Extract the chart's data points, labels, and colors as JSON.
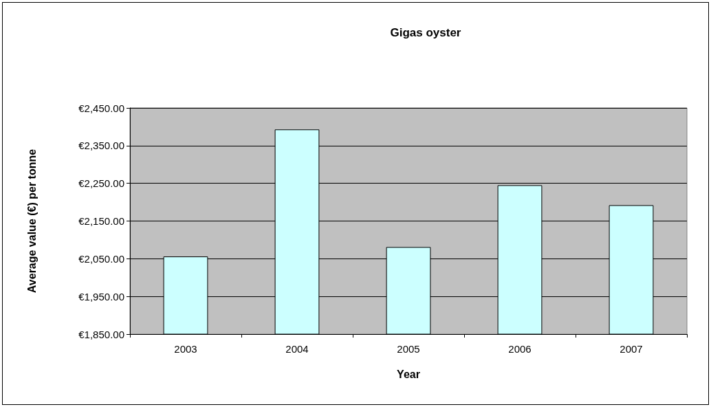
{
  "chart_data": {
    "type": "bar",
    "title": "Gigas oyster",
    "xlabel": "Year",
    "ylabel": "Average value (€) per tonne",
    "categories": [
      "2003",
      "2004",
      "2005",
      "2006",
      "2007"
    ],
    "values": [
      2056,
      2393,
      2081,
      2245,
      2192
    ],
    "color": "#ccffff",
    "ylim": [
      1850,
      2450
    ],
    "yticks": [
      {
        "value": 1850,
        "label": "€1,850.00"
      },
      {
        "value": 1950,
        "label": "€1,950.00"
      },
      {
        "value": 2050,
        "label": "€2,050.00"
      },
      {
        "value": 2150,
        "label": "€2,150.00"
      },
      {
        "value": 2250,
        "label": "€2,250.00"
      },
      {
        "value": 2350,
        "label": "€2,350.00"
      },
      {
        "value": 2450,
        "label": "€2,450.00"
      }
    ],
    "grid": "y"
  }
}
